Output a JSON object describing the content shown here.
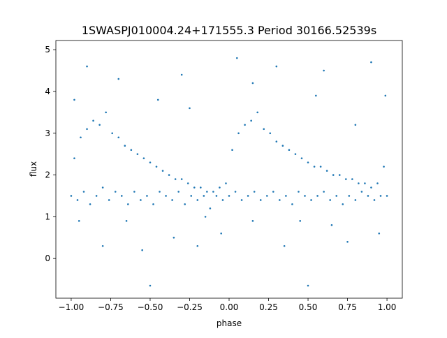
{
  "chart_data": {
    "type": "scatter",
    "title": "1SWASPJ010004.24+171555.3 Period 30166.52539s",
    "xlabel": "phase",
    "ylabel": "flux",
    "xlim": [
      -1.097,
      1.097
    ],
    "ylim": [
      -0.95,
      5.22
    ],
    "xticks": [
      -1.0,
      -0.75,
      -0.5,
      -0.25,
      0.0,
      0.25,
      0.5,
      0.75,
      1.0
    ],
    "xtick_labels": [
      "−1.00",
      "−0.75",
      "−0.50",
      "−0.25",
      "0.00",
      "0.25",
      "0.50",
      "0.75",
      "1.00"
    ],
    "yticks": [
      0,
      1,
      2,
      3,
      4,
      5
    ],
    "ytick_labels": [
      "0",
      "1",
      "2",
      "3",
      "4",
      "5"
    ],
    "grid": false,
    "color": "#1f77b4",
    "points": [
      [
        -1.0,
        1.5
      ],
      [
        -0.98,
        2.4
      ],
      [
        -0.96,
        1.4
      ],
      [
        -0.94,
        2.9
      ],
      [
        -0.92,
        1.6
      ],
      [
        -0.9,
        3.1
      ],
      [
        -0.88,
        1.3
      ],
      [
        -0.86,
        3.3
      ],
      [
        -0.84,
        1.5
      ],
      [
        -0.82,
        3.2
      ],
      [
        -0.8,
        1.7
      ],
      [
        -0.78,
        3.5
      ],
      [
        -0.76,
        1.4
      ],
      [
        -0.74,
        3.0
      ],
      [
        -0.72,
        1.6
      ],
      [
        -0.7,
        2.9
      ],
      [
        -0.68,
        1.5
      ],
      [
        -0.66,
        2.7
      ],
      [
        -0.64,
        1.3
      ],
      [
        -0.62,
        2.6
      ],
      [
        -0.6,
        1.6
      ],
      [
        -0.58,
        2.5
      ],
      [
        -0.56,
        1.4
      ],
      [
        -0.54,
        2.4
      ],
      [
        -0.52,
        1.5
      ],
      [
        -0.5,
        2.3
      ],
      [
        -0.48,
        1.3
      ],
      [
        -0.46,
        2.2
      ],
      [
        -0.44,
        1.6
      ],
      [
        -0.42,
        2.1
      ],
      [
        -0.4,
        1.5
      ],
      [
        -0.38,
        2.0
      ],
      [
        -0.36,
        1.4
      ],
      [
        -0.34,
        1.9
      ],
      [
        -0.32,
        1.6
      ],
      [
        -0.3,
        1.9
      ],
      [
        -0.28,
        1.3
      ],
      [
        -0.26,
        1.8
      ],
      [
        -0.24,
        1.5
      ],
      [
        -0.22,
        1.7
      ],
      [
        -0.2,
        1.4
      ],
      [
        -0.18,
        1.7
      ],
      [
        -0.16,
        1.5
      ],
      [
        -0.14,
        1.6
      ],
      [
        -0.12,
        1.2
      ],
      [
        -0.1,
        1.6
      ],
      [
        -0.08,
        1.5
      ],
      [
        -0.06,
        1.7
      ],
      [
        -0.04,
        1.4
      ],
      [
        -0.02,
        1.8
      ],
      [
        0.0,
        1.5
      ],
      [
        0.02,
        2.6
      ],
      [
        0.04,
        1.6
      ],
      [
        0.06,
        3.0
      ],
      [
        0.08,
        1.4
      ],
      [
        0.1,
        3.2
      ],
      [
        0.12,
        1.5
      ],
      [
        0.14,
        3.3
      ],
      [
        0.16,
        1.6
      ],
      [
        0.18,
        3.5
      ],
      [
        0.2,
        1.4
      ],
      [
        0.22,
        3.1
      ],
      [
        0.24,
        1.5
      ],
      [
        0.26,
        3.0
      ],
      [
        0.28,
        1.6
      ],
      [
        0.3,
        2.8
      ],
      [
        0.32,
        1.4
      ],
      [
        0.34,
        2.7
      ],
      [
        0.36,
        1.5
      ],
      [
        0.38,
        2.6
      ],
      [
        0.4,
        1.3
      ],
      [
        0.42,
        2.5
      ],
      [
        0.44,
        1.6
      ],
      [
        0.46,
        2.4
      ],
      [
        0.48,
        1.5
      ],
      [
        0.5,
        2.3
      ],
      [
        0.52,
        1.4
      ],
      [
        0.54,
        2.2
      ],
      [
        0.56,
        1.5
      ],
      [
        0.58,
        2.2
      ],
      [
        0.6,
        1.6
      ],
      [
        0.62,
        2.1
      ],
      [
        0.64,
        1.4
      ],
      [
        0.66,
        2.0
      ],
      [
        0.68,
        1.5
      ],
      [
        0.7,
        2.0
      ],
      [
        0.72,
        1.3
      ],
      [
        0.74,
        1.9
      ],
      [
        0.76,
        1.5
      ],
      [
        0.78,
        1.9
      ],
      [
        0.8,
        1.4
      ],
      [
        0.82,
        1.8
      ],
      [
        0.84,
        1.6
      ],
      [
        0.86,
        1.8
      ],
      [
        0.88,
        1.5
      ],
      [
        0.9,
        1.7
      ],
      [
        0.92,
        1.4
      ],
      [
        0.94,
        1.8
      ],
      [
        0.96,
        1.5
      ],
      [
        0.98,
        2.2
      ],
      [
        1.0,
        1.5
      ],
      [
        -0.9,
        4.6
      ],
      [
        -0.7,
        4.3
      ],
      [
        -0.55,
        0.2
      ],
      [
        -0.35,
        0.5
      ],
      [
        -0.2,
        0.3
      ],
      [
        -0.05,
        0.6
      ],
      [
        0.05,
        4.8
      ],
      [
        0.15,
        4.2
      ],
      [
        0.35,
        0.3
      ],
      [
        0.5,
        -0.65
      ],
      [
        0.6,
        4.5
      ],
      [
        0.75,
        0.4
      ],
      [
        0.9,
        4.7
      ],
      [
        -0.5,
        -0.65
      ],
      [
        -0.8,
        0.3
      ],
      [
        0.3,
        4.6
      ],
      [
        -0.3,
        4.4
      ],
      [
        0.95,
        0.6
      ],
      [
        -0.95,
        0.9
      ],
      [
        0.45,
        0.9
      ],
      [
        -0.65,
        0.9
      ],
      [
        0.65,
        0.8
      ],
      [
        -0.15,
        1.0
      ],
      [
        0.15,
        0.9
      ],
      [
        -0.45,
        3.8
      ],
      [
        0.55,
        3.9
      ],
      [
        -0.25,
        3.6
      ],
      [
        0.8,
        3.2
      ],
      [
        -0.98,
        3.8
      ],
      [
        0.99,
        3.9
      ]
    ]
  }
}
